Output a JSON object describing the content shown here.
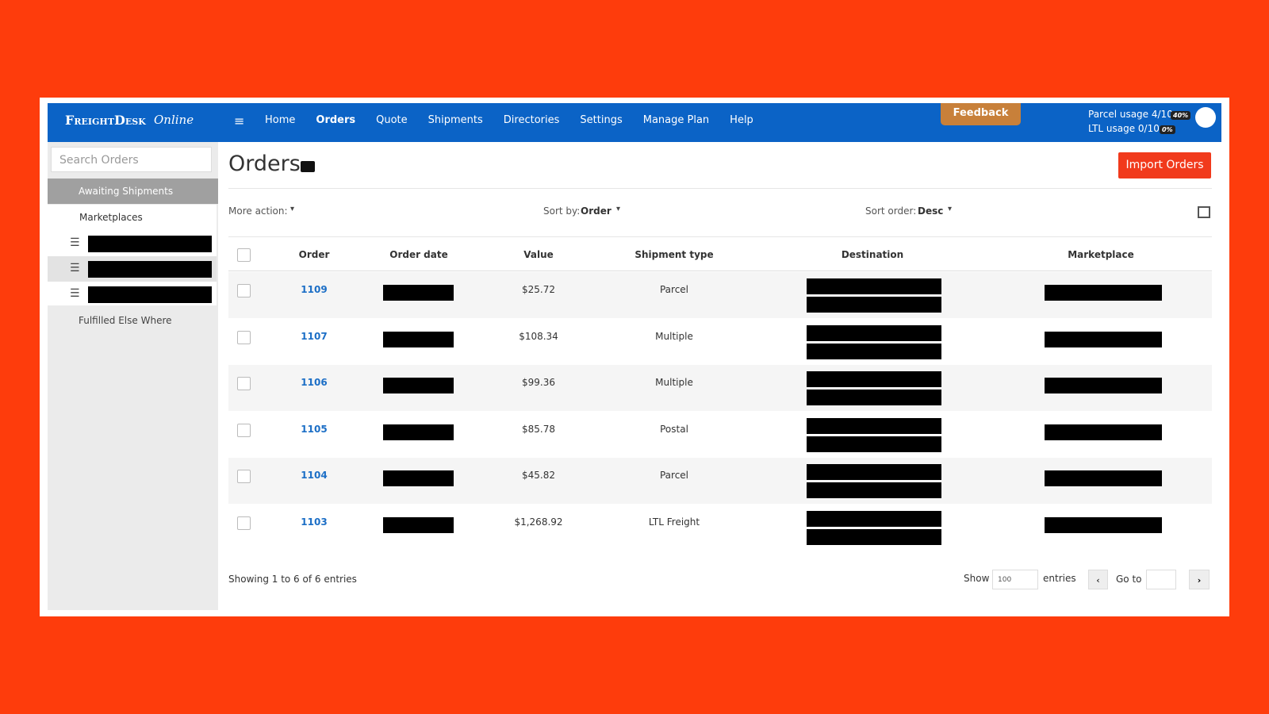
{
  "brand": {
    "name": "FreightDesk",
    "suffix": "Online"
  },
  "nav": [
    "Home",
    "Orders",
    "Quote",
    "Shipments",
    "Directories",
    "Settings",
    "Manage Plan",
    "Help"
  ],
  "feedback": "Feedback",
  "usage": [
    {
      "label": "Parcel usage 4/10",
      "badge": "40%"
    },
    {
      "label": "LTL usage 0/10",
      "badge": "0%"
    }
  ],
  "sidebar": {
    "search_placeholder": "Search Orders",
    "items": [
      "Awaiting Shipments",
      "Marketplaces",
      "Fulfilled Else Where"
    ]
  },
  "page": {
    "title": "Orders",
    "import_button": "Import Orders",
    "more_action": "More action:",
    "sort_by_label": "Sort by:",
    "sort_by_value": "Order",
    "sort_order_label": "Sort order:",
    "sort_order_value": "Desc"
  },
  "table": {
    "columns": [
      "Order",
      "Order date",
      "Value",
      "Shipment type",
      "Destination",
      "Marketplace"
    ],
    "rows": [
      [
        "1109",
        "$25.72",
        "Parcel"
      ],
      [
        "1107",
        "$108.34",
        "Multiple"
      ],
      [
        "1106",
        "$99.36",
        "Multiple"
      ],
      [
        "1105",
        "$85.78",
        "Postal"
      ],
      [
        "1104",
        "$45.82",
        "Parcel"
      ],
      [
        "1103",
        "$1,268.92",
        "LTL Freight"
      ]
    ]
  },
  "footer": {
    "showing": "Showing 1 to 6 of 6 entries",
    "show": "Show",
    "page_size": "100",
    "entries": "entries",
    "go_to": "Go to"
  }
}
